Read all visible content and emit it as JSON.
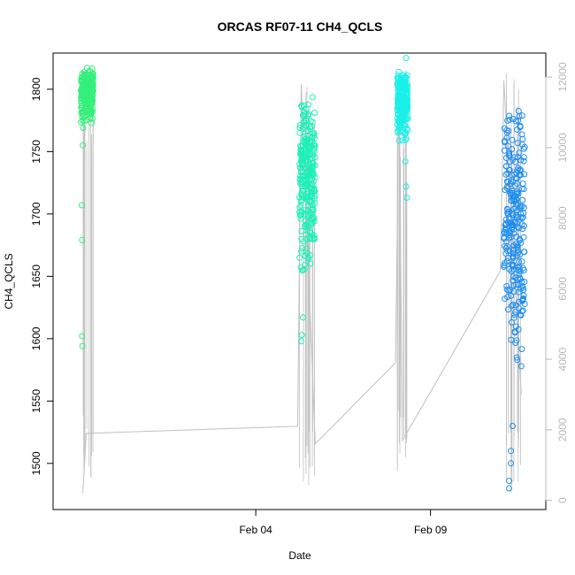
{
  "chart_data": {
    "type": "scatter",
    "title": "ORCAS RF07-11 CH4_QCLS",
    "xlabel": "Date",
    "ylabel": "CH4_QCLS",
    "x_ticks": [
      "Feb 04",
      "Feb 09"
    ],
    "y_ticks": [
      "1500",
      "1550",
      "1600",
      "1650",
      "1700",
      "1750",
      "1800"
    ],
    "y2_ticks": [
      "0",
      "2000",
      "4000",
      "6000",
      "8000",
      "10000",
      "12000"
    ],
    "xlim_days": [
      -0.8,
      13.3
    ],
    "ylim": [
      1463,
      1829
    ],
    "y2lim": [
      -260,
      12680
    ],
    "grid": false,
    "legend": "none",
    "line_color": "#c0c0c0",
    "series": [
      {
        "color": "#33f07a",
        "x_range_days": [
          0.0,
          0.35
        ],
        "y_dense_range": [
          1770,
          1818
        ],
        "outliers": [
          [
            0.02,
            1707
          ],
          [
            0.03,
            1679
          ],
          [
            0.03,
            1602
          ],
          [
            0.04,
            1594
          ],
          [
            0.05,
            1755
          ],
          [
            0.06,
            1769
          ]
        ]
      },
      {
        "color": "#1df0b8",
        "x_range_days": [
          6.25,
          6.7
        ],
        "y_dense_range": [
          1640,
          1800
        ],
        "outliers": [
          [
            6.3,
            1598
          ],
          [
            6.32,
            1603
          ],
          [
            6.35,
            1617
          ],
          [
            6.35,
            1655
          ],
          [
            6.4,
            1690
          ],
          [
            6.5,
            1700
          ]
        ]
      },
      {
        "color": "#1af0e8",
        "x_range_days": [
          9.05,
          9.35
        ],
        "y_dense_range": [
          1755,
          1815
        ],
        "outliers": [
          [
            9.3,
            1825
          ],
          [
            9.3,
            1722
          ],
          [
            9.32,
            1713
          ],
          [
            9.28,
            1742
          ]
        ]
      },
      {
        "color": "#1e8ef0",
        "x_range_days": [
          12.1,
          12.7
        ],
        "y_dense_range": [
          1560,
          1790
        ],
        "outliers": [
          [
            12.25,
            1480
          ],
          [
            12.25,
            1486
          ],
          [
            12.3,
            1500
          ],
          [
            12.3,
            1510
          ],
          [
            12.6,
            1578
          ],
          [
            12.35,
            1530
          ]
        ]
      }
    ],
    "altitude_line": {
      "points": [
        [
          0.05,
          200
        ],
        [
          0.15,
          1900
        ],
        [
          6.2,
          2100
        ],
        [
          6.3,
          11800
        ],
        [
          6.7,
          1600
        ],
        [
          9.0,
          3900
        ],
        [
          9.1,
          11600
        ],
        [
          9.2,
          1700
        ],
        [
          12.0,
          6500
        ],
        [
          12.1,
          11900
        ],
        [
          12.6,
          3000
        ]
      ]
    }
  }
}
